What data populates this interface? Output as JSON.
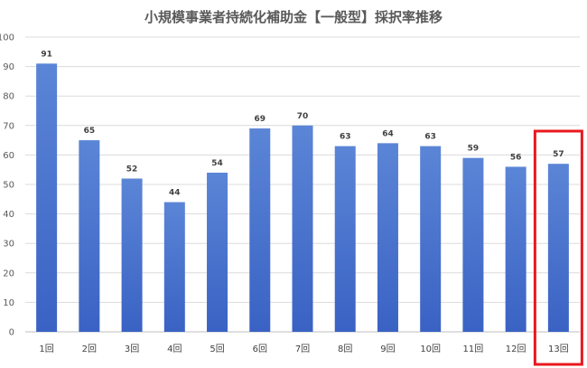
{
  "chart_data": {
    "type": "bar",
    "title": "小規模事業者持続化補助金【一般型】採択率推移",
    "xlabel": "",
    "ylabel": "",
    "ylim": [
      0,
      100
    ],
    "yticks": [
      0,
      10,
      20,
      30,
      40,
      50,
      60,
      70,
      80,
      90,
      100
    ],
    "categories": [
      "1回",
      "2回",
      "3回",
      "4回",
      "5回",
      "6回",
      "7回",
      "8回",
      "9回",
      "10回",
      "11回",
      "12回",
      "13回"
    ],
    "values": [
      91,
      65,
      52,
      44,
      54,
      69,
      70,
      63,
      64,
      63,
      59,
      56,
      57
    ],
    "grid": true,
    "legend": "none",
    "highlighted_category": "13回",
    "colors": {
      "bar_top": "#5b85d6",
      "bar_bottom": "#3a62c4",
      "highlight_box": "#e8191e"
    }
  }
}
